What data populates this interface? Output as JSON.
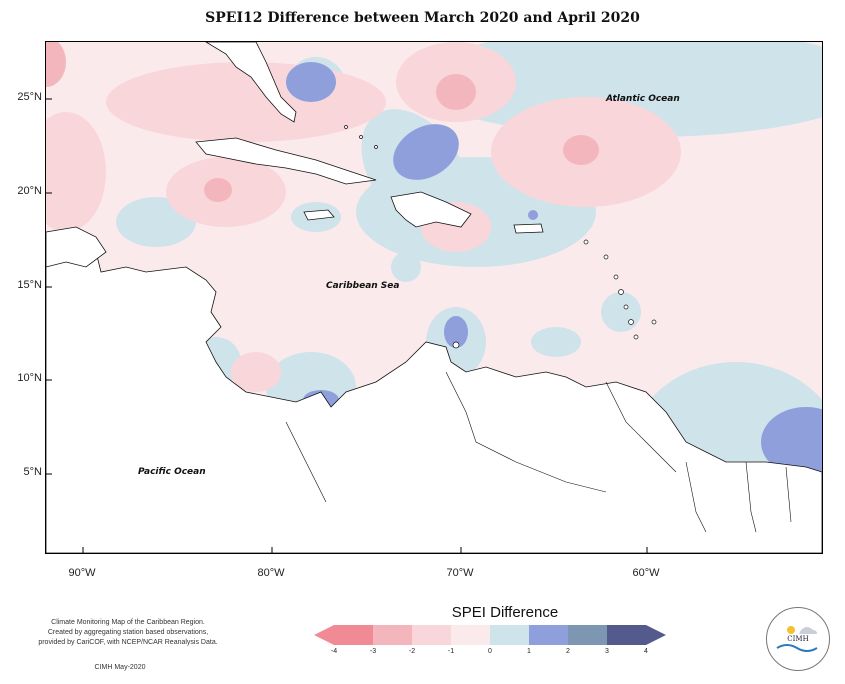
{
  "title": "SPEI12 Difference between March 2020 and April 2020",
  "map": {
    "lat_labels": [
      "25°N",
      "20°N",
      "15°N",
      "10°N",
      "5°N"
    ],
    "lon_labels": [
      "90°W",
      "80°W",
      "70°W",
      "60°W"
    ],
    "ocean_labels": {
      "atlantic": "Atlantic Ocean",
      "caribbean": "Caribbean Sea",
      "pacific": "Pacific Ocean"
    }
  },
  "legend": {
    "title": "SPEI Difference",
    "ticks": [
      "-4",
      "-3",
      "-2",
      "-1",
      "0",
      "1",
      "2",
      "3",
      "4"
    ],
    "colors": [
      "#f08a95",
      "#f4b6bd",
      "#f9d6da",
      "#fbeaec",
      "#cfe3ea",
      "#8f9fdc",
      "#7d97b3",
      "#555a8c"
    ]
  },
  "credit": {
    "line1": "Climate Monitoring Map of the Caribbean Region.",
    "line2": "Created by aggregating station based observations,",
    "line3": "provided by CariCOF, with NCEP/NCAR Reanalysis Data.",
    "date": "CIMH May-2020"
  },
  "logo": {
    "text": "CIMH"
  }
}
